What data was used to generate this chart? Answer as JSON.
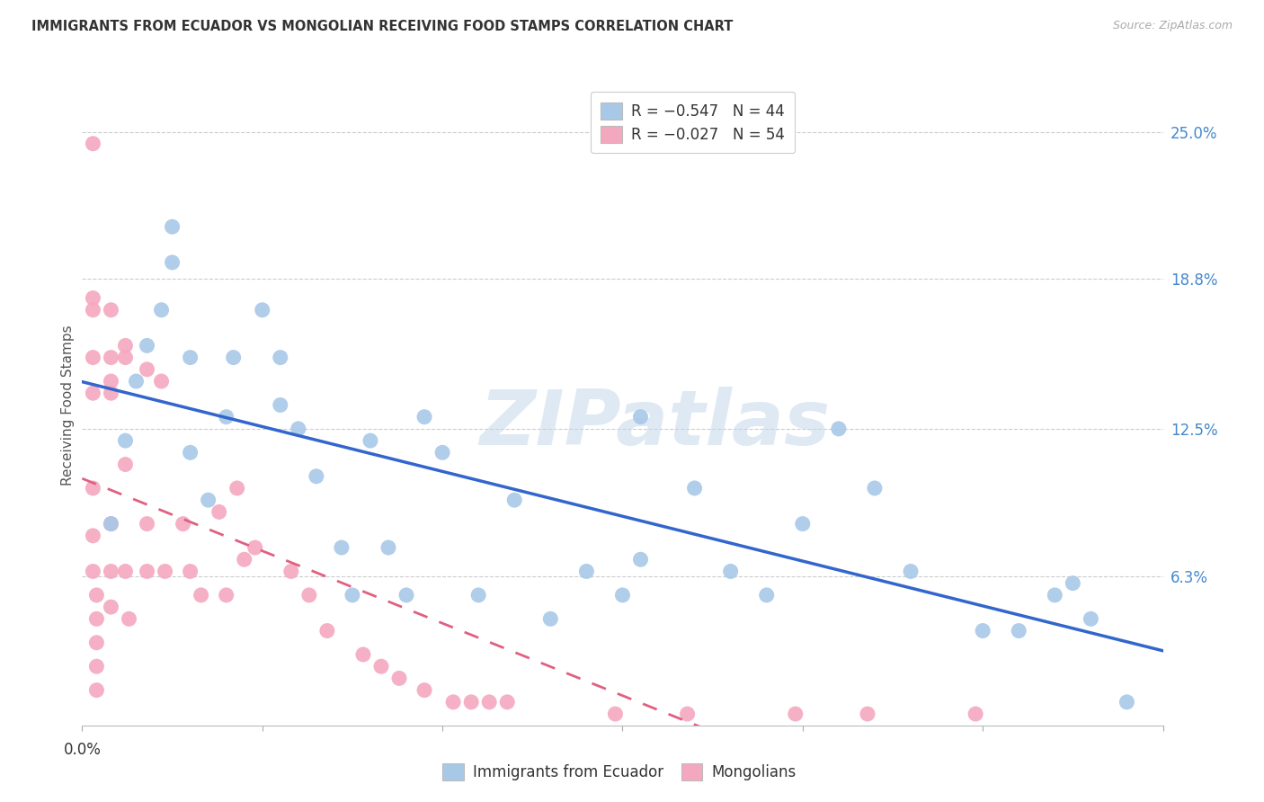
{
  "title": "IMMIGRANTS FROM ECUADOR VS MONGOLIAN RECEIVING FOOD STAMPS CORRELATION CHART",
  "source": "Source: ZipAtlas.com",
  "ylabel": "Receiving Food Stamps",
  "ytick_labels": [
    "25.0%",
    "18.8%",
    "12.5%",
    "6.3%"
  ],
  "ytick_values": [
    0.25,
    0.188,
    0.125,
    0.063
  ],
  "xlim": [
    0.0,
    0.3
  ],
  "ylim": [
    0.0,
    0.27
  ],
  "legend_entry1": "R = −0.547   N = 44",
  "legend_entry2": "R = −0.027   N = 54",
  "watermark": "ZIPatlas",
  "ecuador_color": "#a8c8e8",
  "mongolian_color": "#f4a8c0",
  "ecuador_line_color": "#3366cc",
  "mongolian_line_color": "#e06080",
  "ecuador_x": [
    0.008,
    0.012,
    0.015,
    0.018,
    0.022,
    0.025,
    0.025,
    0.03,
    0.03,
    0.035,
    0.04,
    0.042,
    0.05,
    0.055,
    0.055,
    0.06,
    0.065,
    0.072,
    0.075,
    0.08,
    0.085,
    0.09,
    0.095,
    0.1,
    0.11,
    0.12,
    0.13,
    0.14,
    0.15,
    0.155,
    0.17,
    0.18,
    0.19,
    0.2,
    0.21,
    0.22,
    0.23,
    0.155,
    0.25,
    0.26,
    0.27,
    0.275,
    0.28,
    0.29
  ],
  "ecuador_y": [
    0.085,
    0.12,
    0.145,
    0.16,
    0.175,
    0.195,
    0.21,
    0.155,
    0.115,
    0.095,
    0.13,
    0.155,
    0.175,
    0.155,
    0.135,
    0.125,
    0.105,
    0.075,
    0.055,
    0.12,
    0.075,
    0.055,
    0.13,
    0.115,
    0.055,
    0.095,
    0.045,
    0.065,
    0.055,
    0.13,
    0.1,
    0.065,
    0.055,
    0.085,
    0.125,
    0.1,
    0.065,
    0.07,
    0.04,
    0.04,
    0.055,
    0.06,
    0.045,
    0.01
  ],
  "mongolian_x": [
    0.003,
    0.003,
    0.003,
    0.003,
    0.003,
    0.003,
    0.003,
    0.003,
    0.004,
    0.004,
    0.004,
    0.004,
    0.004,
    0.008,
    0.008,
    0.008,
    0.008,
    0.008,
    0.008,
    0.008,
    0.012,
    0.012,
    0.012,
    0.012,
    0.013,
    0.018,
    0.018,
    0.018,
    0.022,
    0.023,
    0.028,
    0.03,
    0.033,
    0.038,
    0.04,
    0.043,
    0.045,
    0.048,
    0.058,
    0.063,
    0.068,
    0.078,
    0.083,
    0.088,
    0.095,
    0.103,
    0.108,
    0.113,
    0.118,
    0.148,
    0.168,
    0.198,
    0.218,
    0.248
  ],
  "mongolian_y": [
    0.245,
    0.18,
    0.175,
    0.155,
    0.14,
    0.1,
    0.08,
    0.065,
    0.055,
    0.045,
    0.035,
    0.025,
    0.015,
    0.175,
    0.155,
    0.145,
    0.14,
    0.085,
    0.065,
    0.05,
    0.16,
    0.155,
    0.11,
    0.065,
    0.045,
    0.15,
    0.085,
    0.065,
    0.145,
    0.065,
    0.085,
    0.065,
    0.055,
    0.09,
    0.055,
    0.1,
    0.07,
    0.075,
    0.065,
    0.055,
    0.04,
    0.03,
    0.025,
    0.02,
    0.015,
    0.01,
    0.01,
    0.01,
    0.01,
    0.005,
    0.005,
    0.005,
    0.005,
    0.005
  ]
}
